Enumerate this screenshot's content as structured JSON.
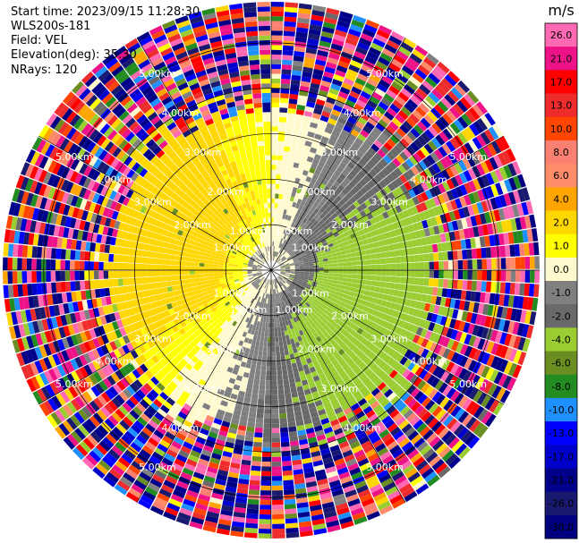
{
  "header": {
    "start_time": "Start time: 2023/09/15 11:28:30",
    "instrument": "WLS200s-181",
    "field": "Field: VEL",
    "elevation": "Elevation(deg): 35.30",
    "nrays": "NRays: 120"
  },
  "colorbar": {
    "unit": "m/s",
    "labels": [
      "26.0",
      "21.0",
      "17.0",
      "13.0",
      "10.0",
      "8.0",
      "6.0",
      "4.0",
      "2.0",
      "1.0",
      "0.0",
      "-1.0",
      "-2.0",
      "-4.0",
      "-6.0",
      "-8.0",
      "-10.0",
      "-13.0",
      "-17.0",
      "-21.0",
      "-26.0",
      "-30.0"
    ],
    "colors": [
      "#ff69b4",
      "#ee1289",
      "#ff0000",
      "#ee2c2c",
      "#ff4500",
      "#fa8072",
      "#ff8c69",
      "#ffa500",
      "#ffd700",
      "#ffff00",
      "#fffacd",
      "#808080",
      "#696969",
      "#9acd32",
      "#6b8e23",
      "#228b22",
      "#1e90ff",
      "#0000ff",
      "#0000cd",
      "#00008b",
      "#191970",
      "#000080"
    ]
  },
  "chart_data": {
    "type": "heatmap",
    "field": "VEL",
    "units": "m/s",
    "nrays": 120,
    "range_rings_km": [
      1.0,
      2.0,
      3.0,
      4.0,
      5.0
    ],
    "range_ring_labels": [
      "1.00km",
      "2.00km",
      "3.00km",
      "4.00km",
      "5.00km"
    ],
    "color_bounds": [
      -30.0,
      -26.0,
      -21.0,
      -17.0,
      -13.0,
      -10.0,
      -8.0,
      -6.0,
      -4.0,
      -2.0,
      -1.0,
      0.0,
      1.0,
      2.0,
      4.0,
      6.0,
      8.0,
      10.0,
      13.0,
      17.0,
      21.0,
      26.0
    ],
    "velocity_pattern": {
      "near_range_center_value": 0.0,
      "positive_sector_azimuth_deg": [
        200,
        20
      ],
      "positive_value": 3.0,
      "negative_sector_azimuth_deg": [
        20,
        200
      ],
      "negative_value": -3.0,
      "clean_signal_max_range_km": 3.4,
      "noise_beyond_km": 3.4
    }
  }
}
